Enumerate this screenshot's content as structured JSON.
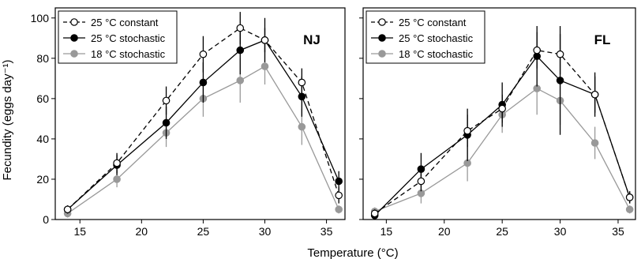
{
  "chart_data": [
    {
      "type": "line",
      "panel_label": "NJ",
      "xlabel": "Temperature (°C)",
      "ylabel": "Fecundity (eggs day⁻¹)",
      "xlim": [
        13,
        36.5
      ],
      "ylim": [
        0,
        105
      ],
      "xticks": [
        15,
        20,
        25,
        30,
        35
      ],
      "yticks": [
        0,
        20,
        40,
        60,
        80,
        100
      ],
      "legend_position": "top-left",
      "x": [
        14,
        18,
        22,
        25,
        28,
        30,
        33,
        36
      ],
      "series": [
        {
          "name": "25 °C constant",
          "style": "dashed",
          "marker": "open",
          "color": "#000000",
          "values": [
            5,
            28,
            59,
            82,
            95,
            89,
            68,
            12
          ],
          "errors": [
            2,
            5,
            7,
            9,
            8,
            6,
            7,
            4
          ]
        },
        {
          "name": "25 °C stochastic",
          "style": "solid",
          "marker": "filled",
          "color": "#000000",
          "values": [
            5,
            27,
            48,
            68,
            84,
            89,
            61,
            19
          ],
          "errors": [
            2,
            5,
            8,
            10,
            12,
            11,
            10,
            5
          ]
        },
        {
          "name": "18 °C stochastic",
          "style": "solid",
          "marker": "filled",
          "color": "#999999",
          "values": [
            3,
            20,
            43,
            60,
            69,
            76,
            46,
            5
          ],
          "errors": [
            2,
            4,
            7,
            9,
            11,
            9,
            9,
            2
          ]
        }
      ]
    },
    {
      "type": "line",
      "panel_label": "FL",
      "xlim": [
        13,
        36.5
      ],
      "ylim": [
        0,
        105
      ],
      "xticks": [
        15,
        20,
        25,
        30,
        35
      ],
      "legend_position": "top-left",
      "x": [
        14,
        18,
        22,
        25,
        28,
        30,
        33,
        36
      ],
      "series": [
        {
          "name": "25 °C constant",
          "style": "dashed",
          "marker": "open",
          "color": "#000000",
          "values": [
            3,
            19,
            44,
            55,
            84,
            82,
            62,
            11
          ],
          "errors": [
            2,
            5,
            8,
            7,
            9,
            10,
            9,
            3
          ]
        },
        {
          "name": "25 °C stochastic",
          "style": "solid",
          "marker": "filled",
          "color": "#000000",
          "values": [
            2,
            25,
            42,
            57,
            81,
            69,
            62,
            11
          ],
          "errors": [
            2,
            8,
            13,
            11,
            15,
            27,
            11,
            3
          ]
        },
        {
          "name": "18 °C stochastic",
          "style": "solid",
          "marker": "filled",
          "color": "#999999",
          "values": [
            4,
            13,
            28,
            52,
            65,
            59,
            38,
            5
          ],
          "errors": [
            2,
            5,
            9,
            9,
            13,
            12,
            8,
            2
          ]
        }
      ]
    }
  ]
}
